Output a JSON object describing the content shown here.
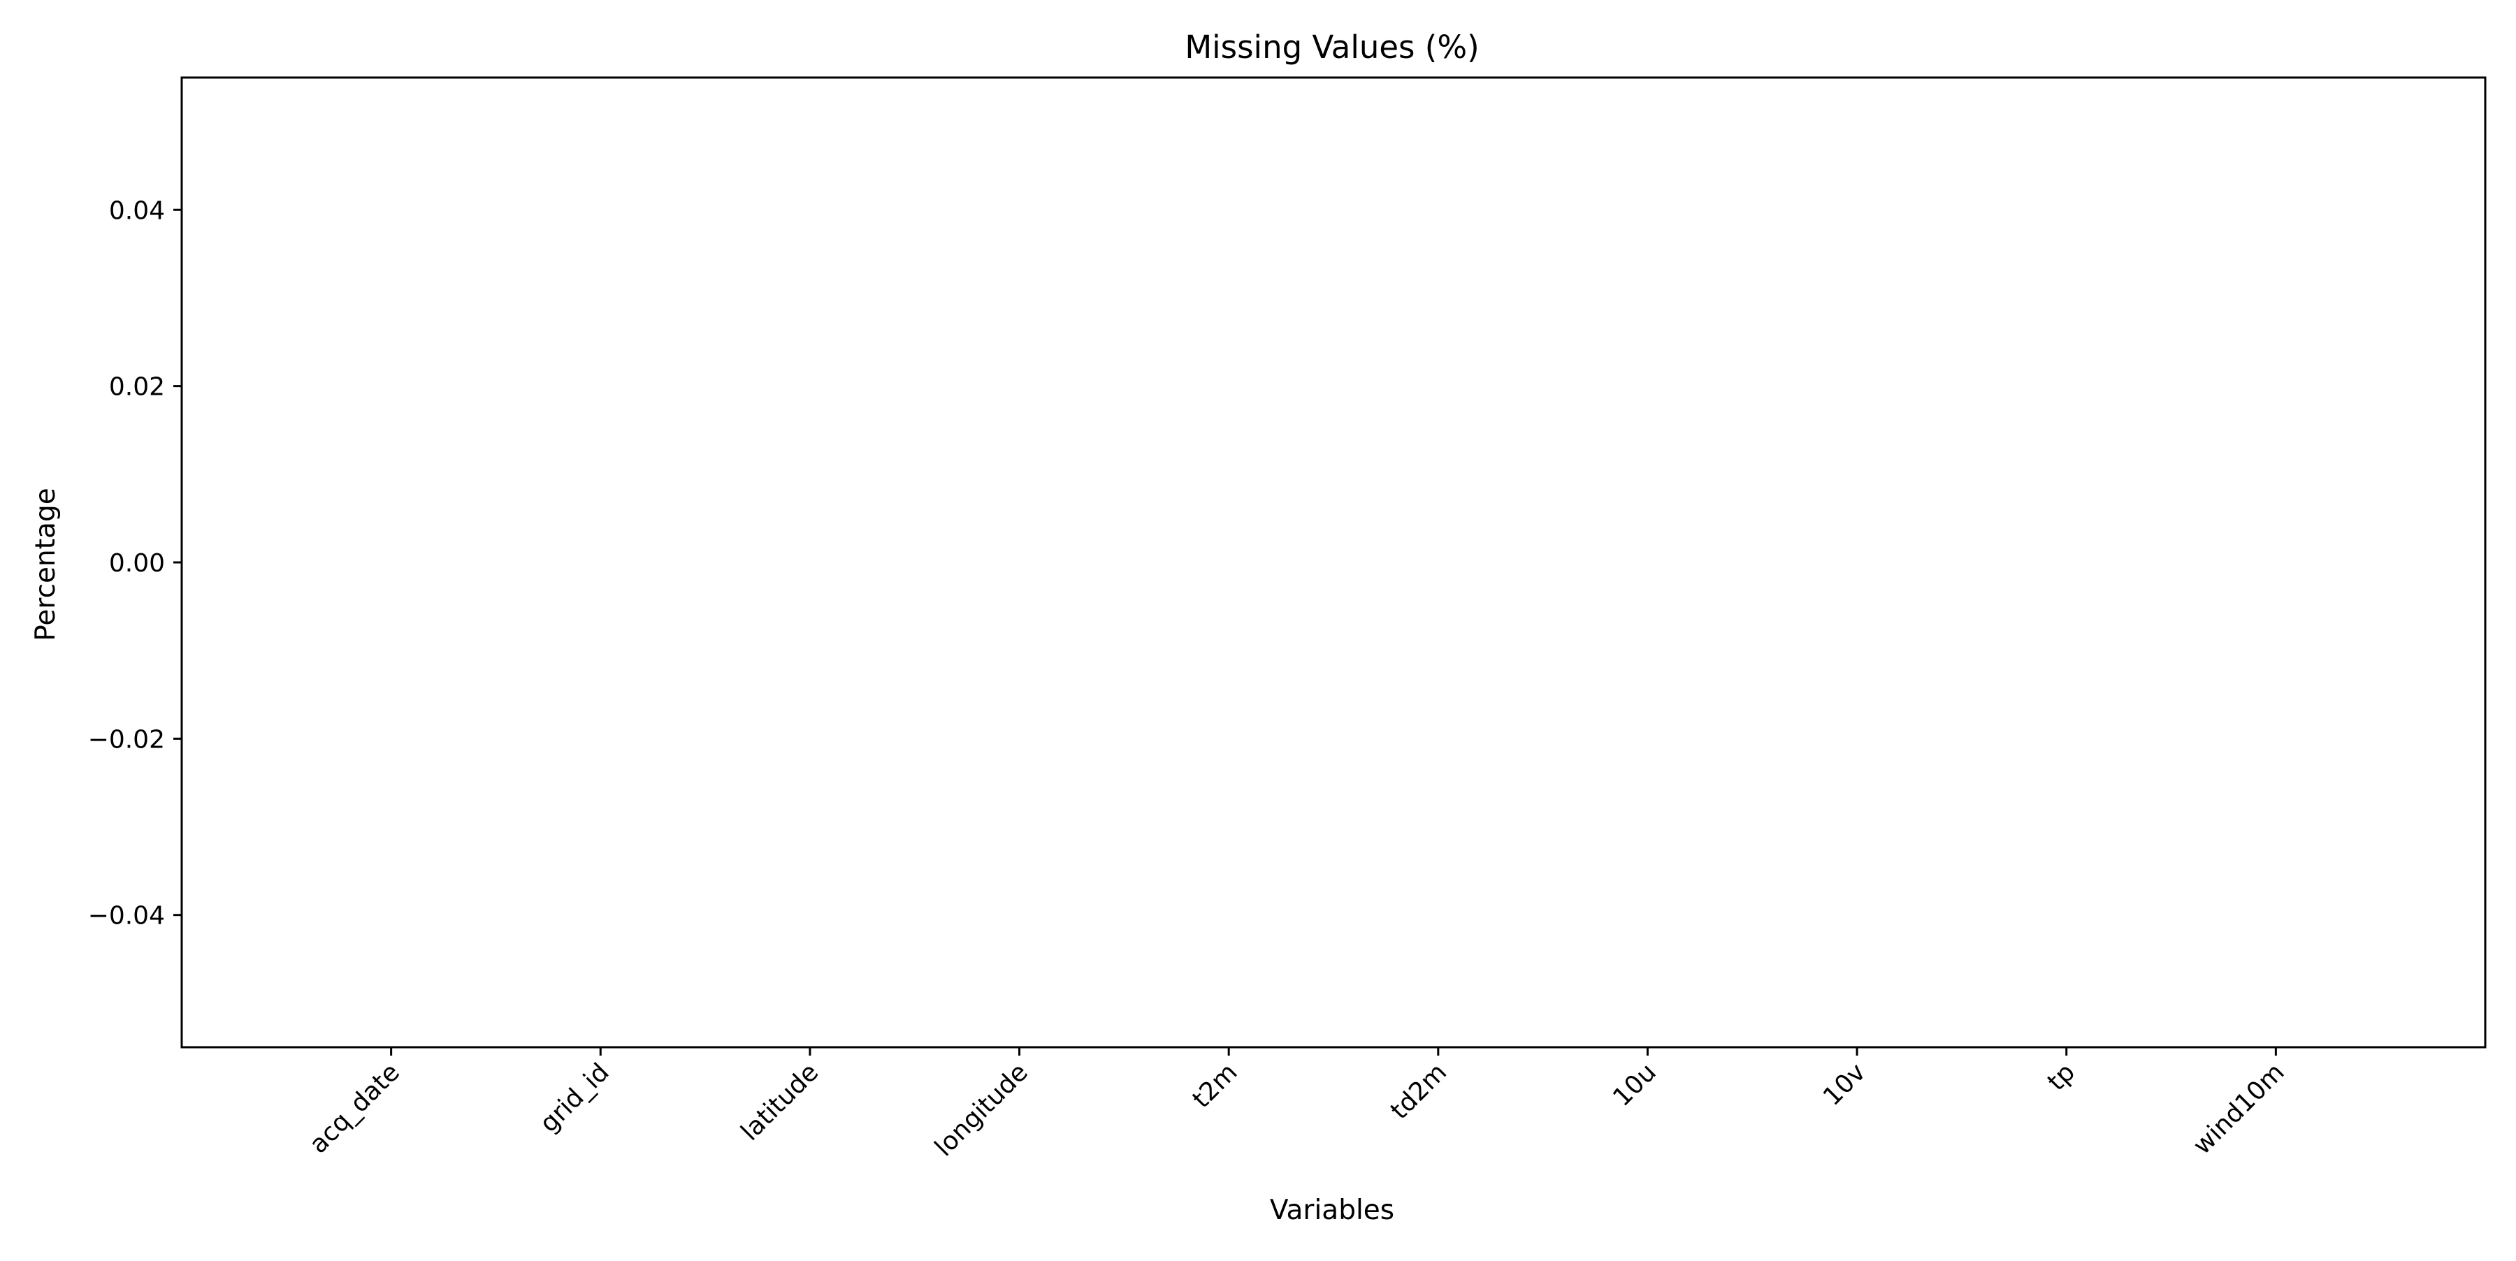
{
  "chart_data": {
    "type": "bar",
    "title": "Missing Values (%)",
    "xlabel": "Variables",
    "ylabel": "Percentage",
    "categories": [
      "acq_date",
      "grid_id",
      "latitude",
      "longitude",
      "t2m",
      "td2m",
      "10u",
      "10v",
      "tp",
      "wind10m"
    ],
    "values": [
      0,
      0,
      0,
      0,
      0,
      0,
      0,
      0,
      0,
      0
    ],
    "ylim": [
      -0.055,
      0.055
    ],
    "yticks": [
      0.04,
      0.02,
      0.0,
      -0.02,
      -0.04
    ],
    "ytick_labels": [
      "0.04",
      "0.02",
      "0.00",
      "−0.02",
      "−0.04"
    ],
    "grid": false,
    "legend": "none"
  }
}
